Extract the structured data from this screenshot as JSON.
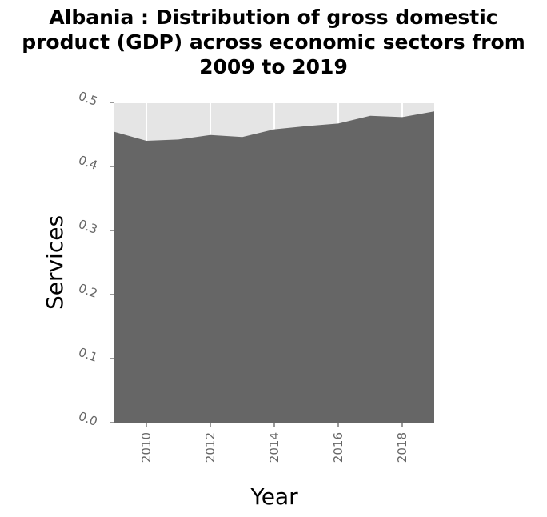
{
  "chart_data": {
    "type": "area",
    "title": "Albania : Distribution of gross domestic product (GDP) across economic sectors from 2009 to 2019",
    "xlabel": "Year",
    "ylabel": "Services",
    "x": [
      2009,
      2010,
      2011,
      2012,
      2013,
      2014,
      2015,
      2016,
      2017,
      2018,
      2019
    ],
    "series": [
      {
        "values": [
          0.454,
          0.44,
          0.442,
          0.449,
          0.446,
          0.458,
          0.463,
          0.467,
          0.479,
          0.477,
          0.486
        ]
      }
    ],
    "xlim": [
      2009,
      2019
    ],
    "ylim": [
      0,
      0.5
    ],
    "xticks": [
      "2010",
      "2012",
      "2014",
      "2016",
      "2018"
    ],
    "yticks": [
      "0.0",
      "0.1",
      "0.2",
      "0.3",
      "0.4",
      "0.5"
    ],
    "grid": true,
    "colors": {
      "area": "#666666",
      "background": "#e5e5e5",
      "grid": "#ffffff"
    }
  }
}
